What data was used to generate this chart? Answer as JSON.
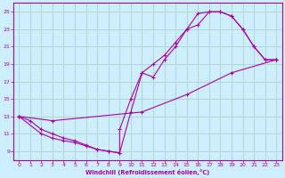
{
  "xlabel": "Windchill (Refroidissement éolien,°C)",
  "bg_color": "#cceeff",
  "grid_color": "#b0d8cc",
  "line_color": "#aa00aa",
  "xlim": [
    -0.5,
    23.5
  ],
  "ylim": [
    8,
    26
  ],
  "yticks": [
    9,
    11,
    13,
    15,
    17,
    19,
    21,
    23,
    25
  ],
  "xticks": [
    0,
    1,
    2,
    3,
    4,
    5,
    6,
    7,
    8,
    9,
    10,
    11,
    12,
    13,
    14,
    15,
    16,
    17,
    18,
    19,
    20,
    21,
    22,
    23
  ],
  "series1": [
    [
      0,
      13
    ],
    [
      1,
      12.5
    ],
    [
      2,
      11.5
    ],
    [
      3,
      11
    ],
    [
      4,
      10.5
    ],
    [
      5,
      10.2
    ],
    [
      6,
      9.7
    ],
    [
      7,
      9.2
    ],
    [
      8,
      9.0
    ],
    [
      9,
      8.8
    ],
    [
      9,
      11.5
    ],
    [
      10,
      15.0
    ],
    [
      11,
      18.0
    ],
    [
      12,
      17.5
    ],
    [
      13,
      19.5
    ],
    [
      14,
      21.0
    ],
    [
      15,
      23.0
    ],
    [
      16,
      23.5
    ],
    [
      17,
      25.0
    ],
    [
      18,
      25.0
    ],
    [
      19,
      24.5
    ],
    [
      20,
      23.0
    ],
    [
      21,
      21.0
    ],
    [
      22,
      19.5
    ],
    [
      23,
      19.5
    ]
  ],
  "series2": [
    [
      0,
      13
    ],
    [
      3,
      12.5
    ],
    [
      11,
      13.5
    ],
    [
      15,
      15.5
    ],
    [
      19,
      18.0
    ],
    [
      23,
      19.5
    ]
  ],
  "series3": [
    [
      0,
      13
    ],
    [
      2,
      11.0
    ],
    [
      3,
      10.5
    ],
    [
      4,
      10.2
    ],
    [
      5,
      10.0
    ],
    [
      6,
      9.6
    ],
    [
      7,
      9.2
    ],
    [
      8,
      9.0
    ],
    [
      9,
      8.8
    ],
    [
      10,
      13.5
    ],
    [
      11,
      18.0
    ],
    [
      12,
      19.0
    ],
    [
      13,
      20.0
    ],
    [
      14,
      21.5
    ],
    [
      15,
      23.0
    ],
    [
      16,
      24.8
    ],
    [
      17,
      25.0
    ],
    [
      18,
      25.0
    ],
    [
      19,
      24.5
    ],
    [
      20,
      23.0
    ],
    [
      21,
      21.0
    ],
    [
      22,
      19.5
    ],
    [
      23,
      19.5
    ]
  ]
}
